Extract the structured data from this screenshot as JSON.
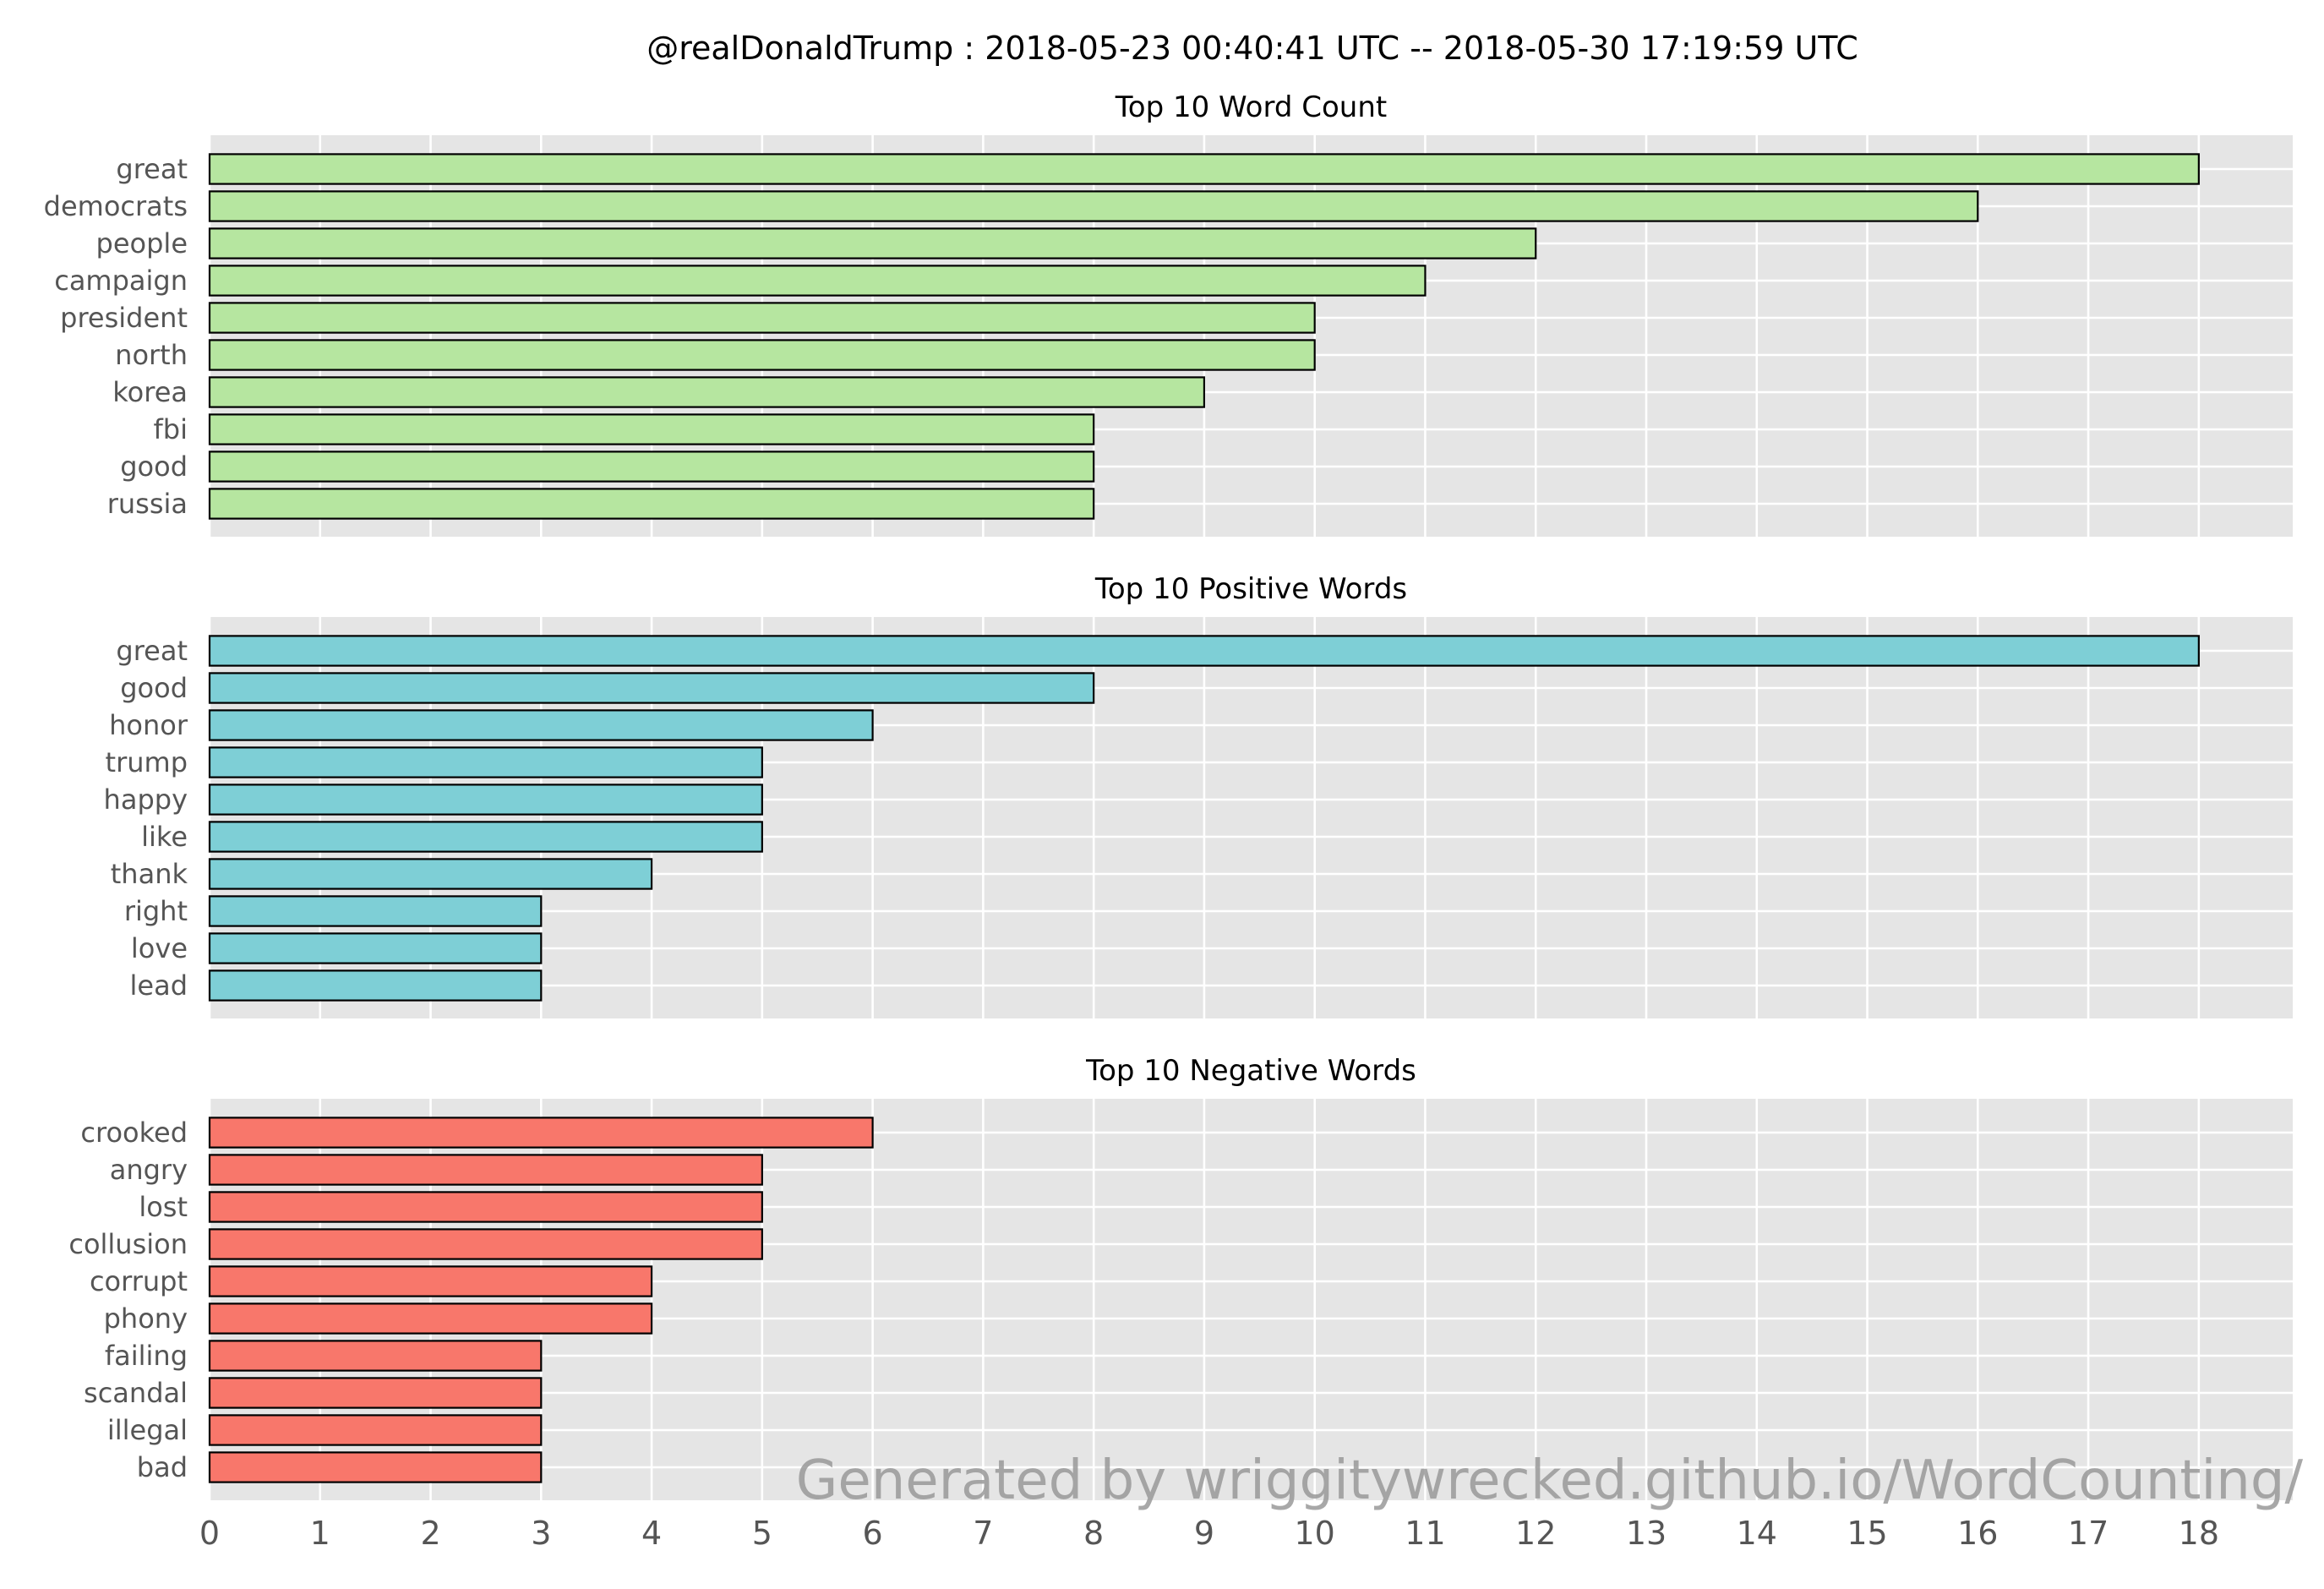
{
  "chart_data": {
    "title": "@realDonaldTrump : 2018-05-23 00:40:41 UTC -- 2018-05-30 17:19:59 UTC",
    "watermark": "Generated by wriggitywrecked.github.io/WordCounting/",
    "x_ticks": [
      0,
      1,
      2,
      3,
      4,
      5,
      6,
      7,
      8,
      9,
      10,
      11,
      12,
      13,
      14,
      15,
      16,
      17,
      18
    ],
    "xlim": [
      0,
      18.85
    ],
    "grid": true,
    "panels": [
      {
        "type": "bar",
        "orientation": "horizontal",
        "title": "Top 10 Word Count",
        "color": "#b6e6a0",
        "categories": [
          "great",
          "democrats",
          "people",
          "campaign",
          "president",
          "north",
          "korea",
          "fbi",
          "good",
          "russia"
        ],
        "values": [
          18,
          16,
          12,
          11,
          10,
          10,
          9,
          8,
          8,
          8
        ]
      },
      {
        "type": "bar",
        "orientation": "horizontal",
        "title": "Top 10 Positive Words",
        "color": "#7ecfd6",
        "categories": [
          "great",
          "good",
          "honor",
          "trump",
          "happy",
          "like",
          "thank",
          "right",
          "love",
          "lead"
        ],
        "values": [
          18,
          8,
          6,
          5,
          5,
          5,
          4,
          3,
          3,
          3
        ]
      },
      {
        "type": "bar",
        "orientation": "horizontal",
        "title": "Top 10 Negative Words",
        "color": "#f8776b",
        "categories": [
          "crooked",
          "angry",
          "lost",
          "collusion",
          "corrupt",
          "phony",
          "failing",
          "scandal",
          "illegal",
          "bad"
        ],
        "values": [
          6,
          5,
          5,
          5,
          4,
          4,
          3,
          3,
          3,
          3
        ]
      }
    ]
  }
}
